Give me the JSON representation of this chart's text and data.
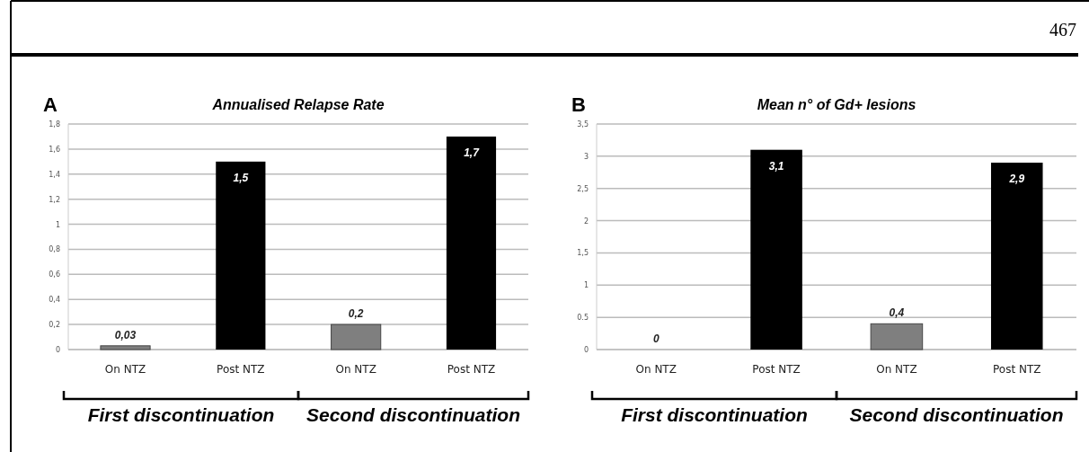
{
  "chart_data": [
    {
      "type": "bar",
      "title": "Annualised Relapse Rate",
      "categories": [
        "On NTZ",
        "Post NTZ",
        "On NTZ",
        "Post NTZ"
      ],
      "values": [
        0.03,
        1.5,
        0.2,
        1.7
      ],
      "colors": [
        "#7f7f7f",
        "#000000",
        "#7f7f7f",
        "#000000"
      ],
      "value_labels": [
        "0,03",
        "1,5",
        "0,2",
        "1,7"
      ],
      "ylim": [
        0,
        1.8
      ],
      "yticks": [
        0,
        {
          "value": 0.2,
          "label": "0,2"
        },
        {
          "value": 0.4,
          "label": "0,4"
        },
        {
          "value": 0.6,
          "label": "0,6"
        },
        {
          "value": 0.8,
          "label": "0,8"
        },
        1,
        {
          "value": 1.2,
          "label": "1,2"
        },
        {
          "value": 1.4,
          "label": "1,4"
        },
        {
          "value": 1.6,
          "label": "1,6"
        },
        {
          "value": 1.8,
          "label": "1,8"
        }
      ],
      "grid": "y",
      "annotations": [
        "A",
        "First discontinuation",
        "Second discontinuation",
        "467"
      ]
    },
    {
      "type": "bar",
      "title": "Mean n° of Gd+ lesions",
      "categories": [
        "On NTZ",
        "Post NTZ",
        "On NTZ",
        "Post NTZ"
      ],
      "values": [
        0,
        3.1,
        0.4,
        2.9
      ],
      "colors": [
        "#7f7f7f",
        "#000000",
        "#7f7f7f",
        "#000000"
      ],
      "value_labels": [
        "0",
        "3,1",
        "0,4",
        "2,9"
      ],
      "ylim": [
        0,
        3.5
      ],
      "yticks": [
        0,
        {
          "value": 0.5,
          "label": "0.5"
        },
        1,
        {
          "value": 1.5,
          "label": "1,5"
        },
        2,
        {
          "value": 2.5,
          "label": "2,5"
        },
        3,
        {
          "value": 3.5,
          "label": "3,5"
        }
      ],
      "grid": "y",
      "annotations": [
        "B",
        "First discontinuation",
        "Second discontinuation"
      ]
    }
  ]
}
